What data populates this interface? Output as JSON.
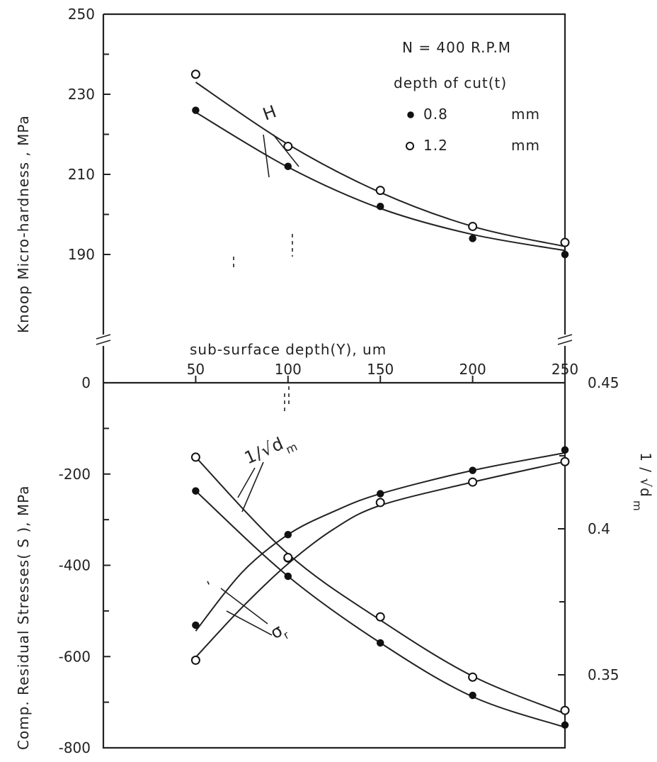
{
  "chart_data": [
    {
      "type": "scatter",
      "panel": "top",
      "ylabel": "Knoop Micro-hardness ,   MPa",
      "xlim": [
        0,
        250
      ],
      "ylim": [
        170,
        250
      ],
      "y_ticks": [
        {
          "value": 190,
          "label": "190"
        },
        {
          "value": 210,
          "label": "210"
        },
        {
          "value": 230,
          "label": "230"
        },
        {
          "value": 250,
          "label": "250"
        }
      ],
      "legend": {
        "placement": "top-right",
        "title_lines": [
          "N = 400   R.P.M",
          "depth of cut(t)"
        ],
        "entries": [
          {
            "marker": "filled-circle",
            "value": "0.8",
            "unit": "mm"
          },
          {
            "marker": "open-circle",
            "value": "1.2",
            "unit": "mm"
          }
        ]
      },
      "annotation": "H",
      "series": [
        {
          "marker": "filled-circle",
          "x": [
            50,
            100,
            150,
            200,
            250
          ],
          "y": [
            226,
            212,
            202,
            194,
            190
          ]
        },
        {
          "marker": "open-circle",
          "x": [
            50,
            100,
            150,
            200,
            250
          ],
          "y": [
            235,
            217,
            206,
            197,
            193
          ]
        }
      ],
      "curves": [
        {
          "x": [
            50,
            100,
            150,
            200,
            250
          ],
          "y": [
            225.5,
            211.8,
            201.5,
            195,
            191
          ]
        },
        {
          "x": [
            50,
            100,
            150,
            200,
            250
          ],
          "y": [
            233,
            217.5,
            205.5,
            197,
            192
          ]
        }
      ]
    },
    {
      "type": "scatter",
      "panel": "bottom",
      "xlabel": "sub-surface depth(Y),  um",
      "ylabel": "Comp. Residual Stresses( S ), MPa",
      "y2label": "1 / √d",
      "y2label_sub": "m",
      "xlim": [
        0,
        250
      ],
      "ylim": [
        -800,
        0
      ],
      "y2lim": [
        0.325,
        0.45
      ],
      "x_ticks": [
        {
          "value": 50,
          "label": "50"
        },
        {
          "value": 100,
          "label": "100"
        },
        {
          "value": 150,
          "label": "150"
        },
        {
          "value": 200,
          "label": "200"
        },
        {
          "value": 250,
          "label": "250"
        }
      ],
      "y_ticks": [
        {
          "value": 0,
          "label": "0"
        },
        {
          "value": -200,
          "label": "-200"
        },
        {
          "value": -400,
          "label": "-400"
        },
        {
          "value": -600,
          "label": "-600"
        },
        {
          "value": -800,
          "label": "-800"
        }
      ],
      "y2_ticks": [
        {
          "value": 0.45,
          "label": "0.45"
        },
        {
          "value": 0.4,
          "label": "0.4"
        },
        {
          "value": 0.35,
          "label": "0.35"
        }
      ],
      "annotations": {
        "dm_curve": "1/√d",
        "dm_sub": "m",
        "sigma": "σ",
        "sigma_sub": "r"
      },
      "series": [
        {
          "axis": "right",
          "marker": "filled-circle",
          "x": [
            50,
            100,
            150,
            200,
            250
          ],
          "y": [
            0.367,
            0.398,
            0.412,
            0.42,
            0.427
          ]
        },
        {
          "axis": "right",
          "marker": "open-circle",
          "x": [
            50,
            100,
            150,
            200,
            250
          ],
          "y": [
            0.355,
            0.39,
            0.409,
            0.416,
            0.423
          ]
        },
        {
          "axis": "left",
          "marker": "filled-circle",
          "x": [
            50,
            100,
            150,
            200,
            250
          ],
          "y": [
            -237,
            -424,
            -570,
            -685,
            -750
          ]
        },
        {
          "axis": "left",
          "marker": "open-circle",
          "x": [
            50,
            100,
            150,
            200,
            250
          ],
          "y": [
            -163,
            -383,
            -513,
            -645,
            -718
          ]
        }
      ],
      "curves": [
        {
          "axis": "right",
          "x": [
            50,
            75,
            100,
            125,
            150,
            200,
            250
          ],
          "y": [
            0.365,
            0.385,
            0.398,
            0.406,
            0.412,
            0.42,
            0.426
          ]
        },
        {
          "axis": "right",
          "x": [
            50,
            75,
            100,
            125,
            150,
            200,
            250
          ],
          "y": [
            0.356,
            0.373,
            0.388,
            0.4,
            0.408,
            0.416,
            0.423
          ]
        },
        {
          "axis": "left",
          "x": [
            50,
            100,
            150,
            200,
            250
          ],
          "y": [
            -237,
            -424,
            -570,
            -688,
            -755
          ]
        },
        {
          "axis": "left",
          "x": [
            50,
            100,
            150,
            200,
            250
          ],
          "y": [
            -163,
            -375,
            -520,
            -643,
            -725
          ]
        }
      ]
    }
  ]
}
